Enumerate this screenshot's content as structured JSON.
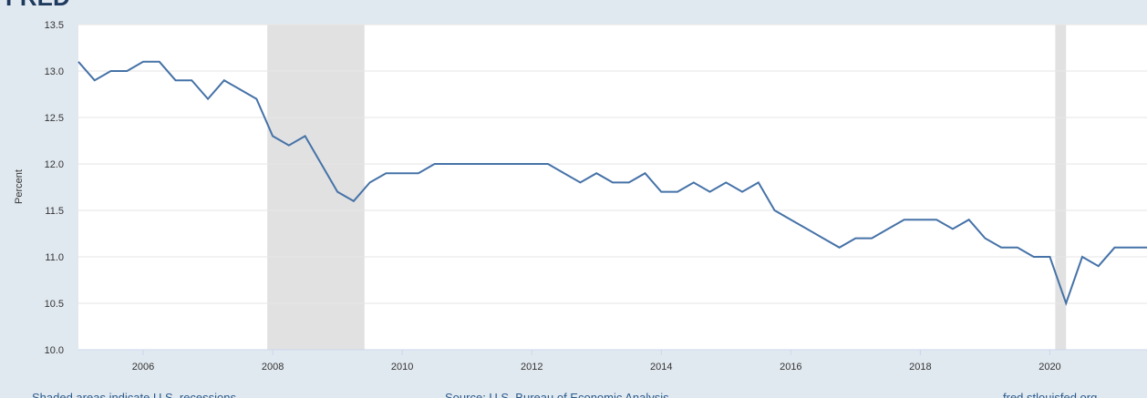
{
  "chart_data": {
    "type": "line",
    "logo": "FRED",
    "ylabel": "Percent",
    "x": [
      2005,
      2005.25,
      2005.5,
      2005.75,
      2006,
      2006.25,
      2006.5,
      2006.75,
      2007,
      2007.25,
      2007.5,
      2007.75,
      2008,
      2008.25,
      2008.5,
      2008.75,
      2009,
      2009.25,
      2009.5,
      2009.75,
      2010,
      2010.25,
      2010.5,
      2010.75,
      2011,
      2011.25,
      2011.5,
      2011.75,
      2012,
      2012.25,
      2012.5,
      2012.75,
      2013,
      2013.25,
      2013.5,
      2013.75,
      2014,
      2014.25,
      2014.5,
      2014.75,
      2015,
      2015.25,
      2015.5,
      2015.75,
      2016,
      2016.25,
      2016.5,
      2016.75,
      2017,
      2017.25,
      2017.5,
      2017.75,
      2018,
      2018.25,
      2018.5,
      2018.75,
      2019,
      2019.25,
      2019.5,
      2019.75,
      2020,
      2020.25,
      2020.5,
      2020.75,
      2021,
      2021.25,
      2021.5
    ],
    "series": [
      {
        "color": "#4572a7",
        "values": [
          13.1,
          12.9,
          13.0,
          13.0,
          13.1,
          13.1,
          12.9,
          12.9,
          12.7,
          12.9,
          12.8,
          12.7,
          12.3,
          12.2,
          12.3,
          12.0,
          11.7,
          11.6,
          11.8,
          11.9,
          11.9,
          11.9,
          12.0,
          12.0,
          12.0,
          12.0,
          12.0,
          12.0,
          12.0,
          12.0,
          11.9,
          11.8,
          11.9,
          11.8,
          11.8,
          11.9,
          11.7,
          11.7,
          11.8,
          11.7,
          11.8,
          11.7,
          11.8,
          11.5,
          11.4,
          11.3,
          11.2,
          11.1,
          11.2,
          11.2,
          11.3,
          11.4,
          11.4,
          11.4,
          11.3,
          11.4,
          11.2,
          11.1,
          11.1,
          11.0,
          11.0,
          10.5,
          11.0,
          10.9,
          11.1,
          11.1,
          11.1
        ]
      }
    ],
    "recessions": [
      [
        2007.917,
        2009.417
      ],
      [
        2020.083,
        2020.25
      ]
    ],
    "xlim": [
      2005,
      2021.5
    ],
    "xticks": [
      2006,
      2008,
      2010,
      2012,
      2014,
      2016,
      2018,
      2020
    ],
    "ylim": [
      10,
      13.5
    ],
    "yticks": [
      {
        "value": 10,
        "label": "10.0"
      },
      10.5,
      {
        "value": 11,
        "label": "11.0"
      },
      11.5,
      {
        "value": 12,
        "label": "12.0"
      },
      12.5,
      {
        "value": 13,
        "label": "13.0"
      },
      13.5
    ],
    "grid": true,
    "notes": [
      "Shaded areas indicate U.S. recessions",
      "Source: U.S. Bureau of Economic Analysis",
      "fred.stlouisfed.org"
    ]
  }
}
